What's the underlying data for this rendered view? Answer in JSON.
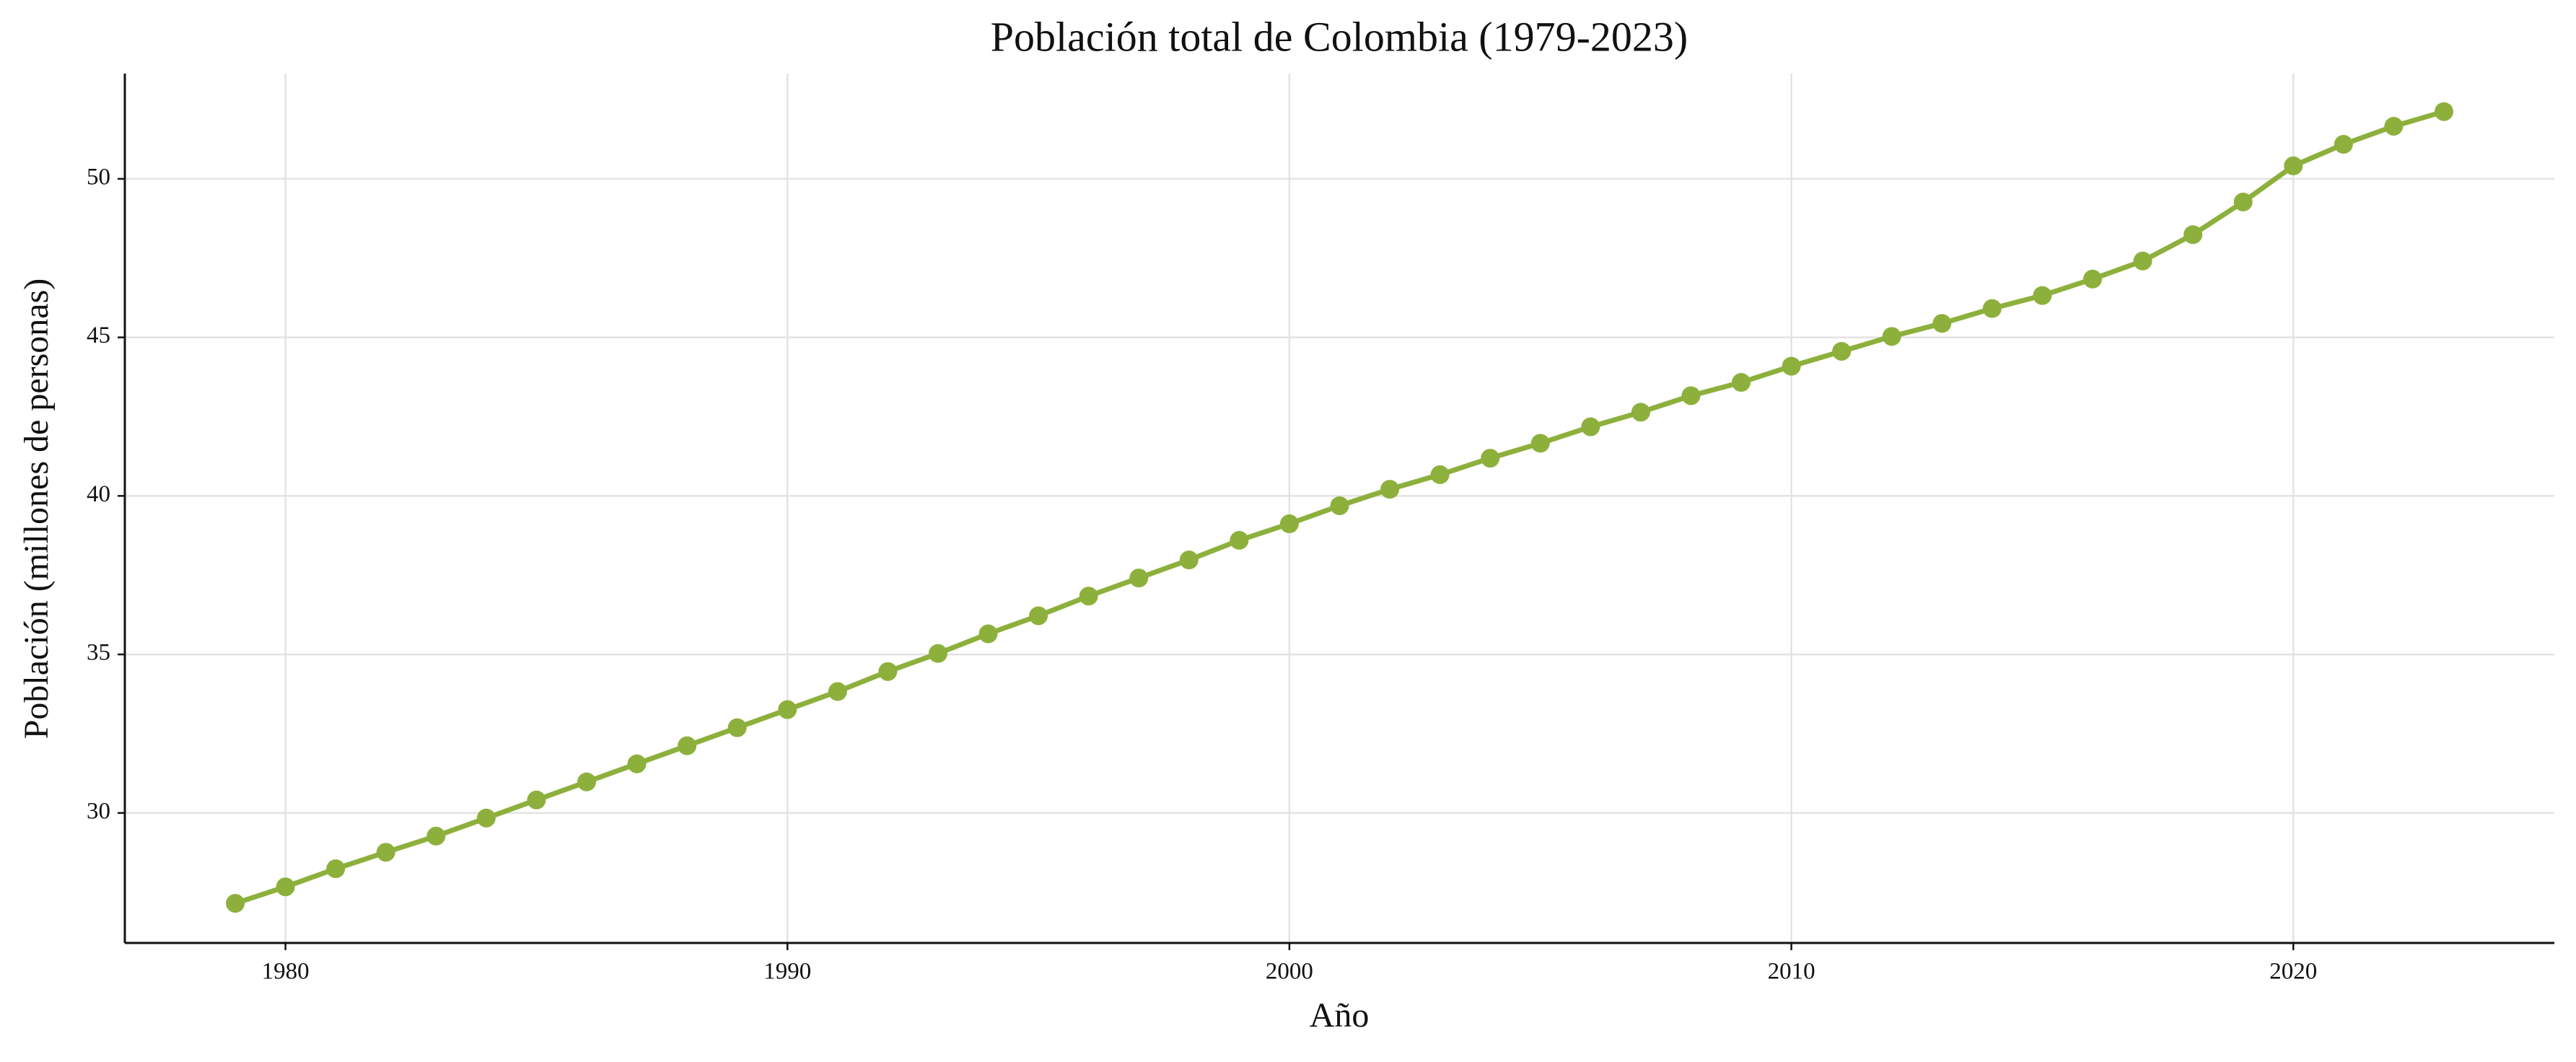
{
  "chart_data": {
    "type": "line",
    "title": "Población total de Colombia (1979-2023)",
    "x_label": "Año",
    "y_label": "Población (millones de personas)",
    "x": [
      1979,
      1980,
      1981,
      1982,
      1983,
      1984,
      1985,
      1986,
      1987,
      1988,
      1989,
      1990,
      1991,
      1992,
      1993,
      1994,
      1995,
      1996,
      1997,
      1998,
      1999,
      2000,
      2001,
      2002,
      2003,
      2004,
      2005,
      2006,
      2007,
      2008,
      2009,
      2010,
      2011,
      2012,
      2013,
      2014,
      2015,
      2016,
      2017,
      2018,
      2019,
      2020,
      2021,
      2022,
      2023
    ],
    "values": [
      27.15,
      27.67,
      28.24,
      28.76,
      29.27,
      29.84,
      30.41,
      30.98,
      31.55,
      32.12,
      32.69,
      33.26,
      33.83,
      34.46,
      35.03,
      35.65,
      36.22,
      36.84,
      37.41,
      37.98,
      38.6,
      39.12,
      39.69,
      40.21,
      40.67,
      41.19,
      41.66,
      42.18,
      42.64,
      43.16,
      43.58,
      44.09,
      44.56,
      45.03,
      45.44,
      45.91,
      46.32,
      46.84,
      47.41,
      48.24,
      49.27,
      50.41,
      51.09,
      51.66,
      52.12
    ],
    "color": "#8db03c",
    "xlim": [
      1976.8,
      2025.2
    ],
    "ylim": [
      25.9,
      53.32
    ],
    "xticks": [
      1980,
      1990,
      2000,
      2010,
      2020
    ],
    "yticks": [
      30,
      35,
      40,
      45,
      50
    ],
    "grid": true
  }
}
